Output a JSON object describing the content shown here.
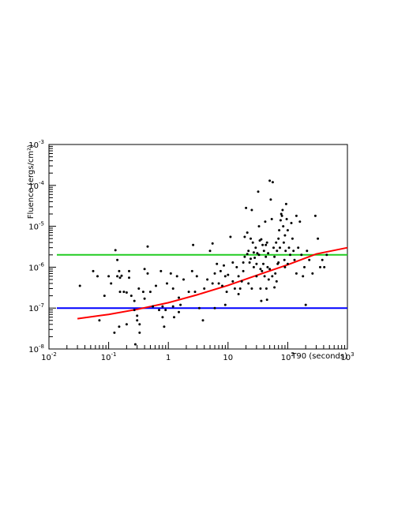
{
  "chart_data": {
    "type": "scatter",
    "title": "",
    "xlabel": "T90 (seconds)",
    "ylabel": "Fluence (ergs/cm²)",
    "xscale": "log",
    "yscale": "log",
    "xlim": [
      0.01,
      1000
    ],
    "ylim": [
      1e-08,
      0.001
    ],
    "grid": false,
    "legend": "none",
    "x_ticks": [
      {
        "value": 0.01,
        "base": "10",
        "exp": "-2"
      },
      {
        "value": 0.1,
        "base": "10",
        "exp": "-1"
      },
      {
        "value": 1,
        "base": "1",
        "exp": ""
      },
      {
        "value": 10,
        "base": "10",
        "exp": ""
      },
      {
        "value": 100,
        "base": "10",
        "exp": "2"
      },
      {
        "value": 1000,
        "base": "10",
        "exp": "3"
      }
    ],
    "y_ticks": [
      {
        "value": 1e-08,
        "base": "10",
        "exp": "-8"
      },
      {
        "value": 1e-07,
        "base": "10",
        "exp": "-7"
      },
      {
        "value": 1e-06,
        "base": "10",
        "exp": "-6"
      },
      {
        "value": 1e-05,
        "base": "10",
        "exp": "-5"
      },
      {
        "value": 0.0001,
        "base": "10",
        "exp": "-4"
      },
      {
        "value": 0.001,
        "base": "10",
        "exp": "-3"
      }
    ],
    "hlines": [
      {
        "y": 2e-06,
        "color": "#22cc22"
      },
      {
        "y": 1e-07,
        "color": "#0000ff"
      }
    ],
    "curve": {
      "color": "#ff0000",
      "points": [
        [
          0.03,
          5.5e-08
        ],
        [
          0.1,
          7e-08
        ],
        [
          0.3,
          9.3e-08
        ],
        [
          1,
          1.35e-07
        ],
        [
          3,
          2.1e-07
        ],
        [
          10,
          3.6e-07
        ],
        [
          30,
          6.3e-07
        ],
        [
          100,
          1.15e-06
        ],
        [
          300,
          2.1e-06
        ],
        [
          1000,
          3e-06
        ]
      ]
    },
    "series": [
      {
        "color": "#000000",
        "points": [
          [
            0.033,
            3.5e-07
          ],
          [
            0.055,
            8e-07
          ],
          [
            0.07,
            5e-08
          ],
          [
            0.065,
            6e-07
          ],
          [
            0.085,
            2e-07
          ],
          [
            0.1,
            6e-07
          ],
          [
            0.11,
            4e-07
          ],
          [
            0.125,
            2.5e-08
          ],
          [
            0.13,
            2.6e-06
          ],
          [
            0.14,
            1.5e-06
          ],
          [
            0.14,
            6e-07
          ],
          [
            0.155,
            5.5e-07
          ],
          [
            0.155,
            2.5e-07
          ],
          [
            0.15,
            8e-07
          ],
          [
            0.15,
            3.5e-08
          ],
          [
            0.165,
            6.2e-07
          ],
          [
            0.18,
            2.5e-07
          ],
          [
            0.2,
            4e-08
          ],
          [
            0.2,
            2.4e-07
          ],
          [
            0.22,
            8e-07
          ],
          [
            0.22,
            5.5e-07
          ],
          [
            0.24,
            2e-07
          ],
          [
            0.27,
            1.5e-07
          ],
          [
            0.27,
            9e-08
          ],
          [
            0.28,
            1.3e-08
          ],
          [
            0.3,
            6.5e-08
          ],
          [
            0.3,
            5e-08
          ],
          [
            0.33,
            4e-08
          ],
          [
            0.33,
            2.5e-08
          ],
          [
            0.32,
            3e-07
          ],
          [
            0.38,
            2.5e-07
          ],
          [
            0.4,
            1.7e-07
          ],
          [
            0.4,
            9e-07
          ],
          [
            0.45,
            3.2e-06
          ],
          [
            0.45,
            7e-07
          ],
          [
            0.5,
            2.5e-07
          ],
          [
            0.55,
            1.1e-07
          ],
          [
            0.62,
            3.5e-07
          ],
          [
            0.7,
            9e-08
          ],
          [
            0.75,
            8e-07
          ],
          [
            0.8,
            1.1e-07
          ],
          [
            0.8,
            6e-08
          ],
          [
            0.85,
            3.5e-08
          ],
          [
            0.9,
            9e-08
          ],
          [
            0.95,
            4e-07
          ],
          [
            1.1,
            7e-07
          ],
          [
            1.2,
            3e-07
          ],
          [
            1.2,
            1.1e-07
          ],
          [
            1.25,
            6e-08
          ],
          [
            1.4,
            6e-07
          ],
          [
            1.5,
            8e-08
          ],
          [
            1.5,
            1.8e-07
          ],
          [
            1.6,
            1.2e-07
          ],
          [
            1.8,
            5e-07
          ],
          [
            2.2,
            2.5e-07
          ],
          [
            2.5,
            8e-07
          ],
          [
            2.6,
            3.5e-06
          ],
          [
            2.8,
            2.5e-07
          ],
          [
            3,
            6e-07
          ],
          [
            3.3,
            1e-07
          ],
          [
            3.8,
            5e-08
          ],
          [
            4,
            3e-07
          ],
          [
            4.5,
            5e-07
          ],
          [
            5,
            2.5e-06
          ],
          [
            5.5,
            3.8e-06
          ],
          [
            5.5,
            4e-07
          ],
          [
            6,
            1e-07
          ],
          [
            6.5,
            1.2e-06
          ],
          [
            7,
            4e-07
          ],
          [
            7.5,
            8e-07
          ],
          [
            8,
            3.5e-07
          ],
          [
            8.5,
            1.1e-06
          ],
          [
            9,
            6e-07
          ],
          [
            9.5,
            2.5e-07
          ],
          [
            10,
            6.5e-07
          ],
          [
            11,
            5.5e-06
          ],
          [
            12,
            1.3e-06
          ],
          [
            13,
            3e-07
          ],
          [
            14,
            1e-06
          ],
          [
            15,
            6e-07
          ],
          [
            16,
            3e-07
          ],
          [
            17,
            4.5e-07
          ],
          [
            18,
            8e-07
          ],
          [
            19,
            1.8e-06
          ],
          [
            19,
            5.5e-06
          ],
          [
            20,
            2.8e-05
          ],
          [
            21,
            7e-06
          ],
          [
            22,
            2.5e-06
          ],
          [
            22,
            4e-07
          ],
          [
            23,
            1.3e-06
          ],
          [
            24,
            5e-06
          ],
          [
            25,
            2.5e-05
          ],
          [
            25,
            3e-07
          ],
          [
            26,
            4e-06
          ],
          [
            27,
            1e-06
          ],
          [
            28,
            1.7e-06
          ],
          [
            29,
            3e-06
          ],
          [
            30,
            6e-07
          ],
          [
            31,
            2.2e-06
          ],
          [
            32,
            7e-05
          ],
          [
            33,
            1e-05
          ],
          [
            34,
            4.5e-06
          ],
          [
            35,
            3e-07
          ],
          [
            36,
            1.5e-07
          ],
          [
            37,
            8e-07
          ],
          [
            38,
            3.5e-06
          ],
          [
            39,
            1.2e-06
          ],
          [
            40,
            2.5e-06
          ],
          [
            41,
            6e-07
          ],
          [
            42,
            1.3e-05
          ],
          [
            43,
            1.8e-06
          ],
          [
            44,
            3e-07
          ],
          [
            45,
            4e-06
          ],
          [
            46,
            1e-06
          ],
          [
            47,
            2.2e-06
          ],
          [
            48,
            5e-07
          ],
          [
            50,
            0.00013
          ],
          [
            52,
            4.5e-05
          ],
          [
            54,
            1.5e-05
          ],
          [
            56,
            0.00012
          ],
          [
            58,
            3e-06
          ],
          [
            60,
            1.8e-06
          ],
          [
            62,
            7e-07
          ],
          [
            64,
            4e-06
          ],
          [
            66,
            2.5e-06
          ],
          [
            68,
            1.2e-06
          ],
          [
            70,
            5e-06
          ],
          [
            72,
            8e-06
          ],
          [
            74,
            3e-06
          ],
          [
            76,
            1.4e-05
          ],
          [
            78,
            2e-05
          ],
          [
            80,
            1.8e-05
          ],
          [
            82,
            2.5e-05
          ],
          [
            84,
            1e-05
          ],
          [
            86,
            4e-06
          ],
          [
            88,
            1.5e-06
          ],
          [
            90,
            6e-06
          ],
          [
            92,
            2.5e-06
          ],
          [
            94,
            3.5e-05
          ],
          [
            96,
            1.5e-05
          ],
          [
            100,
            8e-06
          ],
          [
            105,
            3e-06
          ],
          [
            110,
            2e-06
          ],
          [
            115,
            1.2e-05
          ],
          [
            120,
            5e-06
          ],
          [
            125,
            2.5e-06
          ],
          [
            130,
            1.5e-06
          ],
          [
            140,
            1.8e-05
          ],
          [
            150,
            3e-06
          ],
          [
            160,
            1.3e-05
          ],
          [
            170,
            2e-06
          ],
          [
            180,
            6e-07
          ],
          [
            190,
            1e-06
          ],
          [
            200,
            1.2e-07
          ],
          [
            210,
            2.5e-06
          ],
          [
            230,
            1.5e-06
          ],
          [
            260,
            7e-07
          ],
          [
            290,
            1.8e-05
          ],
          [
            320,
            5e-06
          ],
          [
            350,
            1e-06
          ],
          [
            380,
            1.5e-06
          ],
          [
            410,
            1e-06
          ],
          [
            450,
            2e-06
          ],
          [
            100,
            1.2e-06
          ],
          [
            140,
            7e-07
          ],
          [
            60,
            3.2e-07
          ],
          [
            45,
            1.6e-07
          ],
          [
            35,
            9e-07
          ],
          [
            70,
            1.3e-06
          ],
          [
            90,
            1e-06
          ],
          [
            15,
            2.2e-07
          ],
          [
            12,
            4.5e-07
          ],
          [
            9,
            1.2e-07
          ],
          [
            6,
            7e-07
          ],
          [
            30,
            1.2e-06
          ],
          [
            24,
            1.6e-06
          ],
          [
            18,
            1.3e-06
          ],
          [
            27,
            2.3e-06
          ],
          [
            36,
            4.8e-06
          ],
          [
            50,
            9e-07
          ],
          [
            65,
            4.5e-07
          ],
          [
            55,
            6e-07
          ],
          [
            43,
            3.5e-06
          ],
          [
            33,
            2e-06
          ],
          [
            21,
            2.1e-06
          ]
        ]
      }
    ]
  }
}
